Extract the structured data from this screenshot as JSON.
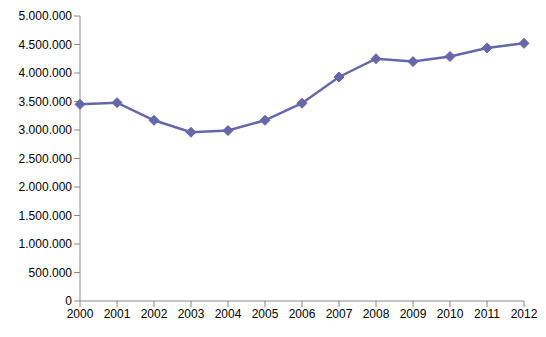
{
  "chart_data": {
    "type": "line",
    "categories": [
      "2000",
      "2001",
      "2002",
      "2003",
      "2004",
      "2005",
      "2006",
      "2007",
      "2008",
      "2009",
      "2010",
      "2011",
      "2012"
    ],
    "values": [
      3450000,
      3480000,
      3170000,
      2960000,
      2990000,
      3170000,
      3470000,
      3930000,
      4250000,
      4200000,
      4290000,
      4440000,
      4520000
    ],
    "color": "#6666aa",
    "marker": "diamond",
    "ylim": [
      0,
      5000000
    ],
    "yticks": [
      0,
      {
        "value": 500000,
        "label": "500.000"
      },
      {
        "value": 1000000,
        "label": "1.000.000"
      },
      {
        "value": 1500000,
        "label": "1.500.000"
      },
      {
        "value": 2000000,
        "label": "2.000.000"
      },
      {
        "value": 2500000,
        "label": "2.500.000"
      },
      {
        "value": 3000000,
        "label": "3.000.000"
      },
      {
        "value": 3500000,
        "label": "3.500.000"
      },
      {
        "value": 4000000,
        "label": "4.000.000"
      },
      {
        "value": 4500000,
        "label": "4.500.000"
      },
      {
        "value": 5000000,
        "label": "5.000.000"
      }
    ],
    "grid": false
  }
}
